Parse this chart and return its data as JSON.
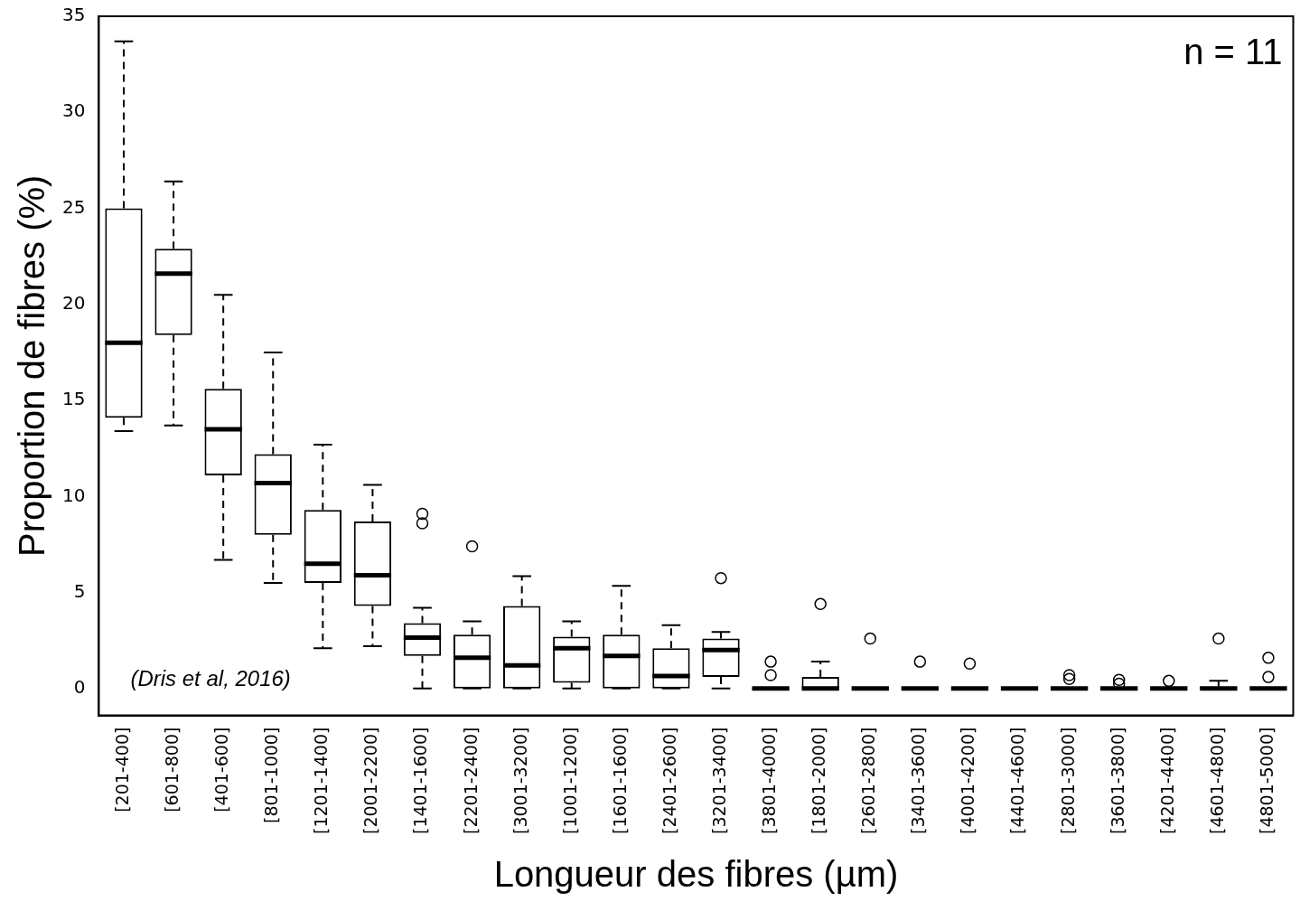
{
  "chart_data": {
    "type": "box",
    "xlabel": "Longueur des fibres (µm)",
    "ylabel": "Proportion de fibres (%)",
    "annotations": [
      "n = 11",
      "(Dris et al, 2016)"
    ],
    "categories": [
      "[201-400]",
      "[601-800]",
      "[401-600]",
      "[801-1000]",
      "[1201-1400]",
      "[2001-2200]",
      "[1401-1600]",
      "[2201-2400]",
      "[3001-3200]",
      "[1001-1200]",
      "[1601-1600]",
      "[2401-2600]",
      "[3201-3400]",
      "[3801-4000]",
      "[1801-2000]",
      "[2601-2800]",
      "[3401-3600]",
      "[4001-4200]",
      "[4401-4600]",
      "[2801-3000]",
      "[3601-3800]",
      "[4201-4400]",
      "[4601-4800]",
      "[4801-5000]"
    ],
    "boxes": [
      {
        "low": 13.4,
        "q1": 14.1,
        "median": 18,
        "q3": 25,
        "high": 33.7
      },
      {
        "low": 13.7,
        "q1": 18.4,
        "median": 21.6,
        "q3": 22.9,
        "high": 26.4
      },
      {
        "low": 6.7,
        "q1": 11.1,
        "median": 13.5,
        "q3": 15.6,
        "high": 20.5
      },
      {
        "low": 5.5,
        "q1": 8,
        "median": 10.7,
        "q3": 12.2,
        "high": 17.5
      },
      {
        "low": 2.1,
        "q1": 5.5,
        "median": 6.5,
        "q3": 9.3,
        "high": 12.7
      },
      {
        "low": 2.2,
        "q1": 4.3,
        "median": 5.9,
        "q3": 8.7,
        "high": 10.6
      },
      {
        "low": 0,
        "q1": 1.7,
        "median": 2.65,
        "q3": 3.4,
        "high": 4.2,
        "outliers": [
          9.1,
          8.6
        ]
      },
      {
        "low": 0,
        "q1": 0,
        "median": 1.6,
        "q3": 2.8,
        "high": 3.5,
        "outliers": [
          7.4
        ]
      },
      {
        "low": 0,
        "q1": 0,
        "median": 1.2,
        "q3": 4.3,
        "high": 5.85
      },
      {
        "low": 0,
        "q1": 0.3,
        "median": 2.1,
        "q3": 2.7,
        "high": 3.5
      },
      {
        "low": 0,
        "q1": 0,
        "median": 1.7,
        "q3": 2.8,
        "high": 5.35
      },
      {
        "low": 0,
        "q1": 0,
        "median": 0.65,
        "q3": 2.1,
        "high": 3.3
      },
      {
        "low": 0,
        "q1": 0.6,
        "median": 2,
        "q3": 2.6,
        "high": 2.95,
        "outliers": [
          5.75
        ]
      },
      {
        "low": 0,
        "q1": 0,
        "median": 0,
        "q3": 0,
        "high": 0,
        "outliers": [
          1.4,
          0.7
        ]
      },
      {
        "low": 0,
        "q1": 0,
        "median": 0,
        "q3": 0.6,
        "high": 1.4,
        "outliers": [
          4.4
        ]
      },
      {
        "low": 0,
        "q1": 0,
        "median": 0,
        "q3": 0,
        "high": 0,
        "outliers": [
          2.6
        ]
      },
      {
        "low": 0,
        "q1": 0,
        "median": 0,
        "q3": 0,
        "high": 0,
        "outliers": [
          1.4
        ]
      },
      {
        "low": 0,
        "q1": 0,
        "median": 0,
        "q3": 0,
        "high": 0,
        "outliers": [
          1.3
        ]
      },
      {
        "low": 0,
        "q1": 0,
        "median": 0,
        "q3": 0,
        "high": 0
      },
      {
        "low": 0,
        "q1": 0,
        "median": 0,
        "q3": 0,
        "high": 0,
        "outliers": [
          0.7,
          0.5
        ]
      },
      {
        "low": 0,
        "q1": 0,
        "median": 0,
        "q3": 0,
        "high": 0,
        "outliers": [
          0.45,
          0.25
        ]
      },
      {
        "low": 0,
        "q1": 0,
        "median": 0,
        "q3": 0,
        "high": 0,
        "outliers": [
          0.4
        ]
      },
      {
        "low": 0,
        "q1": 0,
        "median": 0,
        "q3": 0.1,
        "high": 0.4,
        "outliers": [
          2.6
        ]
      },
      {
        "low": 0,
        "q1": 0,
        "median": 0,
        "q3": 0,
        "high": 0,
        "outliers": [
          1.6,
          0.6
        ]
      }
    ],
    "ylim": [
      -1.4,
      35
    ],
    "yticks": [
      0,
      5,
      10,
      15,
      20,
      25,
      30,
      35
    ],
    "grid": false,
    "legend": false
  }
}
